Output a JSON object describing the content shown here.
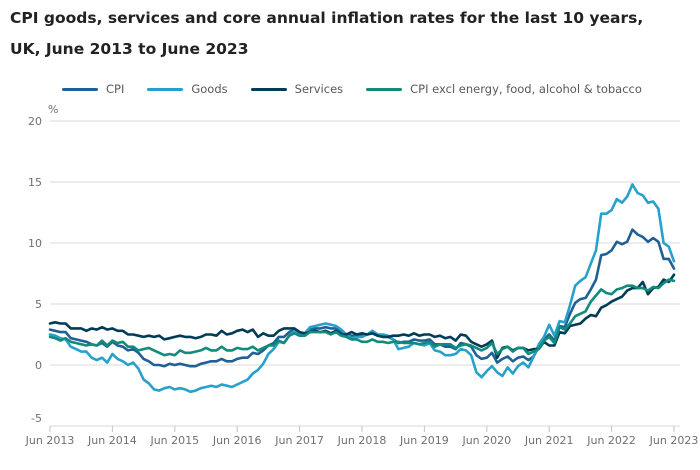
{
  "header": {
    "title_line1": "CPI goods, services and core annual inflation rates for the last 10 years,",
    "title_line2": "UK, June 2013 to June 2023"
  },
  "legend": {
    "items": [
      {
        "label": "CPI"
      },
      {
        "label": "Goods"
      },
      {
        "label": "Services"
      },
      {
        "label": "CPI excl energy, food, alcohol & tobacco"
      }
    ]
  },
  "colors": {
    "cpi": "#206095",
    "goods": "#27A0CC",
    "services": "#003C57",
    "core": "#118C7B",
    "gridline": "#d9d9d9",
    "axis_text": "#707071"
  },
  "chart_data": {
    "type": "line",
    "title": "CPI goods, services and core annual inflation rates for the last 10 years, UK, June 2013 to June 2023",
    "unit_label": "%",
    "frequency": "monthly",
    "x_start": "Jun 2013",
    "x_end": "Jun 2023",
    "points_per_series": 121,
    "x_tick_labels": [
      "Jun 2013",
      "Jun 2014",
      "Jun 2015",
      "Jun 2016",
      "Jun 2017",
      "Jun 2018",
      "Jun 2019",
      "Jun 2020",
      "Jun 2021",
      "Jun 2022",
      "Jun 2023"
    ],
    "x_tick_every_n_points": 12,
    "ylim": [
      -5,
      20
    ],
    "yticks": [
      -5,
      0,
      5,
      10,
      15,
      20
    ],
    "grid": "horizontal-only",
    "legend_position": "top",
    "series": [
      {
        "name": "CPI",
        "color": "#206095",
        "values": [
          2.9,
          2.8,
          2.7,
          2.7,
          2.2,
          2.1,
          2.0,
          1.9,
          1.7,
          1.6,
          1.8,
          1.5,
          1.9,
          1.6,
          1.5,
          1.2,
          1.3,
          1.0,
          0.5,
          0.3,
          0.0,
          0.0,
          -0.1,
          0.1,
          0.0,
          0.1,
          0.0,
          -0.1,
          -0.1,
          0.1,
          0.2,
          0.3,
          0.3,
          0.5,
          0.3,
          0.3,
          0.5,
          0.6,
          0.6,
          1.0,
          0.9,
          1.2,
          1.6,
          1.8,
          2.3,
          2.3,
          2.7,
          2.9,
          2.6,
          2.6,
          2.9,
          3.0,
          3.0,
          3.1,
          3.0,
          3.0,
          2.7,
          2.5,
          2.4,
          2.4,
          2.4,
          2.5,
          2.7,
          2.4,
          2.4,
          2.3,
          2.1,
          1.8,
          1.9,
          1.9,
          2.1,
          2.0,
          2.0,
          2.1,
          1.7,
          1.7,
          1.5,
          1.5,
          1.3,
          1.8,
          1.7,
          1.5,
          0.8,
          0.5,
          0.6,
          1.0,
          0.2,
          0.5,
          0.7,
          0.3,
          0.6,
          0.7,
          0.4,
          0.7,
          1.5,
          2.1,
          2.5,
          2.0,
          3.2,
          3.1,
          4.2,
          5.1,
          5.4,
          5.5,
          6.2,
          7.0,
          9.0,
          9.1,
          9.4,
          10.1,
          9.9,
          10.1,
          11.1,
          10.7,
          10.5,
          10.1,
          10.4,
          10.1,
          8.7,
          8.7,
          7.9
        ]
      },
      {
        "name": "Goods",
        "color": "#27A0CC",
        "values": [
          2.5,
          2.4,
          2.2,
          2.1,
          1.5,
          1.3,
          1.1,
          1.1,
          0.6,
          0.4,
          0.6,
          0.2,
          0.9,
          0.5,
          0.3,
          0.0,
          0.2,
          -0.3,
          -1.2,
          -1.5,
          -2.0,
          -2.1,
          -1.9,
          -1.8,
          -2.0,
          -1.9,
          -2.0,
          -2.2,
          -2.1,
          -1.9,
          -1.8,
          -1.7,
          -1.8,
          -1.6,
          -1.7,
          -1.8,
          -1.6,
          -1.4,
          -1.2,
          -0.7,
          -0.4,
          0.1,
          0.9,
          1.3,
          1.9,
          1.8,
          2.4,
          2.8,
          2.6,
          2.6,
          3.1,
          3.2,
          3.3,
          3.4,
          3.3,
          3.2,
          2.9,
          2.5,
          2.2,
          2.3,
          2.3,
          2.5,
          2.8,
          2.5,
          2.5,
          2.4,
          2.1,
          1.3,
          1.4,
          1.5,
          1.8,
          1.7,
          1.6,
          1.8,
          1.2,
          1.1,
          0.8,
          0.8,
          0.9,
          1.3,
          1.2,
          0.8,
          -0.6,
          -1.0,
          -0.5,
          -0.1,
          -0.6,
          -0.9,
          -0.2,
          -0.7,
          -0.1,
          0.2,
          -0.2,
          0.7,
          1.7,
          2.3,
          3.3,
          2.4,
          3.6,
          3.5,
          4.9,
          6.5,
          6.9,
          7.2,
          8.3,
          9.4,
          12.4,
          12.4,
          12.7,
          13.6,
          13.3,
          13.8,
          14.8,
          14.1,
          13.9,
          13.3,
          13.4,
          12.8,
          10.0,
          9.7,
          8.5
        ]
      },
      {
        "name": "Services",
        "color": "#003C57",
        "values": [
          3.4,
          3.5,
          3.4,
          3.4,
          3.0,
          3.0,
          3.0,
          2.8,
          3.0,
          2.9,
          3.1,
          2.9,
          3.0,
          2.8,
          2.8,
          2.5,
          2.5,
          2.4,
          2.3,
          2.4,
          2.3,
          2.4,
          2.1,
          2.2,
          2.3,
          2.4,
          2.3,
          2.3,
          2.2,
          2.3,
          2.5,
          2.5,
          2.4,
          2.8,
          2.5,
          2.6,
          2.8,
          2.9,
          2.7,
          2.9,
          2.3,
          2.6,
          2.4,
          2.4,
          2.8,
          3.0,
          3.0,
          3.0,
          2.7,
          2.6,
          2.7,
          2.8,
          2.7,
          2.8,
          2.6,
          2.8,
          2.5,
          2.5,
          2.7,
          2.5,
          2.6,
          2.5,
          2.6,
          2.4,
          2.3,
          2.3,
          2.4,
          2.4,
          2.5,
          2.4,
          2.6,
          2.4,
          2.5,
          2.5,
          2.3,
          2.4,
          2.2,
          2.3,
          2.0,
          2.5,
          2.4,
          1.9,
          1.7,
          1.5,
          1.7,
          2.0,
          0.6,
          1.4,
          1.5,
          1.2,
          1.4,
          1.4,
          1.2,
          1.3,
          1.3,
          1.9,
          1.6,
          1.6,
          2.7,
          2.6,
          3.2,
          3.3,
          3.4,
          3.8,
          4.1,
          4.0,
          4.7,
          4.9,
          5.2,
          5.4,
          5.6,
          6.1,
          6.3,
          6.3,
          6.8,
          5.8,
          6.3,
          6.4,
          7.0,
          6.8,
          7.4
        ]
      },
      {
        "name": "CPI excl energy, food, alcohol & tobacco",
        "color": "#118C7B",
        "values": [
          2.3,
          2.2,
          2.0,
          2.2,
          1.9,
          1.8,
          1.7,
          1.6,
          1.7,
          1.6,
          2.0,
          1.6,
          2.0,
          1.8,
          1.9,
          1.5,
          1.5,
          1.2,
          1.3,
          1.4,
          1.2,
          1.0,
          0.8,
          0.9,
          0.8,
          1.2,
          1.0,
          1.0,
          1.1,
          1.2,
          1.4,
          1.2,
          1.2,
          1.5,
          1.2,
          1.2,
          1.4,
          1.3,
          1.3,
          1.5,
          1.2,
          1.4,
          1.6,
          1.6,
          2.0,
          1.8,
          2.4,
          2.6,
          2.4,
          2.4,
          2.7,
          2.7,
          2.7,
          2.7,
          2.5,
          2.7,
          2.4,
          2.3,
          2.1,
          2.1,
          1.9,
          1.9,
          2.1,
          1.9,
          1.9,
          1.8,
          1.9,
          1.9,
          1.8,
          1.8,
          1.8,
          1.7,
          1.8,
          1.9,
          1.5,
          1.7,
          1.7,
          1.7,
          1.4,
          1.6,
          1.7,
          1.6,
          1.4,
          1.2,
          1.4,
          1.8,
          0.9,
          1.3,
          1.5,
          1.1,
          1.4,
          1.4,
          0.9,
          1.1,
          1.3,
          2.0,
          2.3,
          1.8,
          3.1,
          2.9,
          3.4,
          4.0,
          4.2,
          4.4,
          5.2,
          5.7,
          6.2,
          5.9,
          5.8,
          6.2,
          6.3,
          6.5,
          6.5,
          6.3,
          6.3,
          6.1,
          6.4,
          6.3,
          6.7,
          7.0,
          6.9
        ]
      }
    ]
  }
}
